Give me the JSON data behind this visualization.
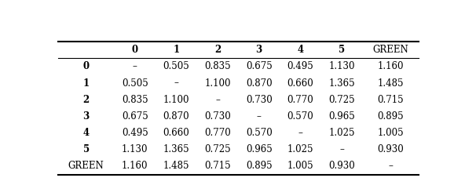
{
  "col_headers": [
    "",
    "0",
    "1",
    "2",
    "3",
    "4",
    "5",
    "GREEN"
  ],
  "row_headers": [
    "0",
    "1",
    "2",
    "3",
    "4",
    "5",
    "GREEN"
  ],
  "table_data": [
    [
      "–",
      "0.505",
      "0.835",
      "0.675",
      "0.495",
      "1.130",
      "1.160"
    ],
    [
      "0.505",
      "–",
      "1.100",
      "0.870",
      "0.660",
      "1.365",
      "1.485"
    ],
    [
      "0.835",
      "1.100",
      "–",
      "0.730",
      "0.770",
      "0.725",
      "0.715"
    ],
    [
      "0.675",
      "0.870",
      "0.730",
      "–",
      "0.570",
      "0.965",
      "0.895"
    ],
    [
      "0.495",
      "0.660",
      "0.770",
      "0.570",
      "–",
      "1.025",
      "1.005"
    ],
    [
      "1.130",
      "1.365",
      "0.725",
      "0.965",
      "1.025",
      "–",
      "0.930"
    ],
    [
      "1.160",
      "1.485",
      "0.715",
      "0.895",
      "1.005",
      "0.930",
      "–"
    ]
  ],
  "background_color": "#ffffff",
  "fontsize": 8.5,
  "figsize": [
    5.92,
    2.5
  ],
  "dpi": 100,
  "row_header_bold": [
    true,
    true,
    true,
    true,
    true,
    true,
    false
  ],
  "col_header_bold": [
    false,
    true,
    true,
    true,
    true,
    true,
    true,
    false
  ]
}
